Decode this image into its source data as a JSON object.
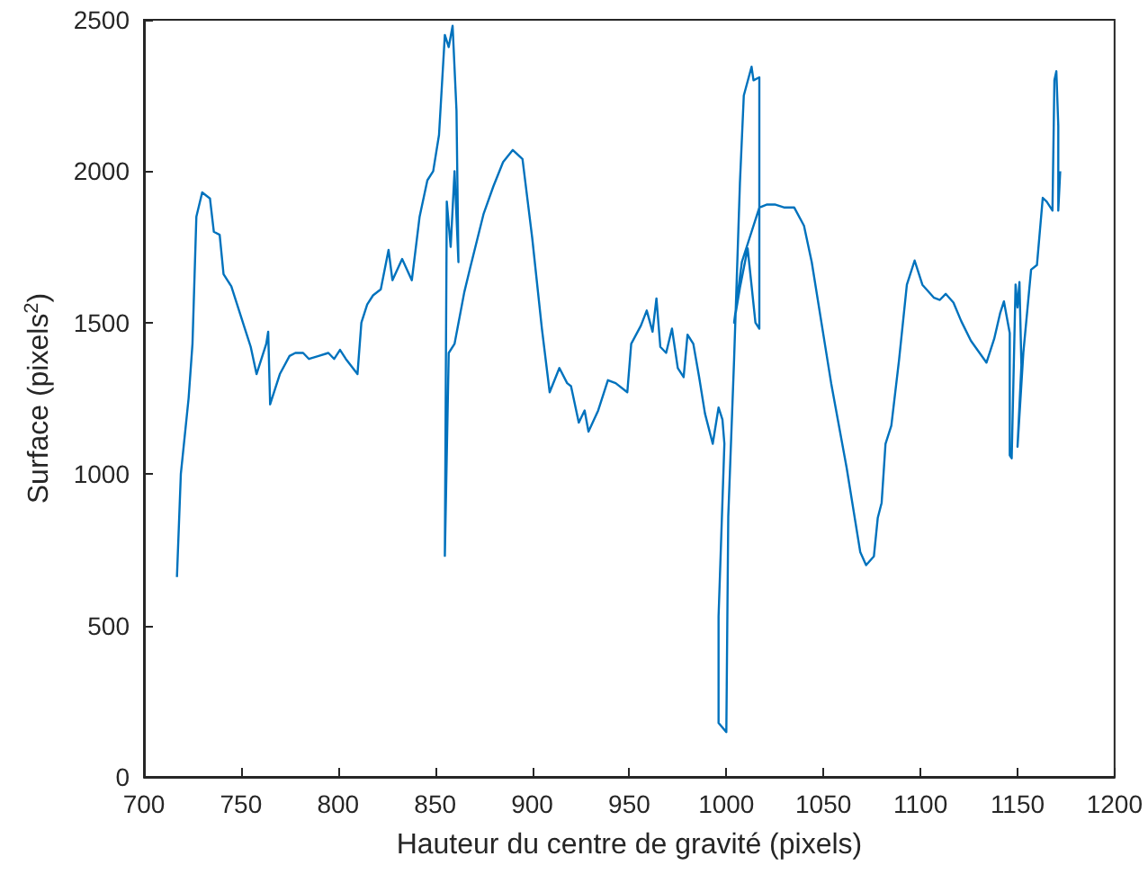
{
  "chart_data": {
    "type": "line",
    "xlabel": "Hauteur du centre de gravité (pixels)",
    "ylabel": "Surface (pixels$^{2}$)",
    "color": "#0072bd",
    "marker": "none",
    "line_style": "solid",
    "grid": false,
    "x": [
      717,
      719,
      723,
      725,
      727,
      730,
      734,
      736,
      739,
      741,
      745,
      748,
      752,
      755,
      758,
      763,
      764,
      765,
      770,
      775,
      778,
      782,
      785,
      790,
      795,
      798,
      801,
      804,
      810,
      812,
      815,
      818,
      822,
      826,
      828,
      833,
      838,
      842,
      846,
      849,
      852,
      855,
      857,
      859,
      861,
      862,
      860,
      858,
      856,
      855,
      857,
      860,
      865,
      868,
      875,
      880,
      885,
      890,
      895,
      900,
      905,
      909,
      914,
      918,
      920,
      924,
      927,
      929,
      934,
      939,
      943,
      949,
      951,
      956,
      959,
      962,
      964,
      966,
      969,
      972,
      975,
      978,
      980,
      983,
      986,
      989,
      993,
      996,
      998,
      999,
      996,
      996,
      1000,
      1001,
      1004,
      1007,
      1009,
      1013,
      1014,
      1017,
      1017,
      1015,
      1011,
      1007,
      1004,
      1008,
      1012,
      1017,
      1021,
      1025,
      1030,
      1035,
      1040,
      1044,
      1054,
      1062,
      1069,
      1072,
      1076,
      1078,
      1080,
      1082,
      1085,
      1089,
      1093,
      1097,
      1101,
      1107,
      1110,
      1113,
      1117,
      1121,
      1126,
      1134,
      1138,
      1141,
      1143,
      1146,
      1146,
      1147,
      1149,
      1150,
      1151,
      1152,
      1150,
      1153,
      1157,
      1160,
      1163,
      1165,
      1168,
      1169,
      1170,
      1171,
      1171,
      1172
    ],
    "values": [
      660,
      1000,
      1250,
      1430,
      1850,
      1930,
      1910,
      1800,
      1790,
      1660,
      1620,
      1560,
      1480,
      1420,
      1330,
      1430,
      1470,
      1230,
      1330,
      1390,
      1400,
      1400,
      1380,
      1390,
      1400,
      1380,
      1410,
      1380,
      1330,
      1500,
      1560,
      1590,
      1610,
      1740,
      1640,
      1710,
      1640,
      1850,
      1970,
      2000,
      2120,
      2450,
      2410,
      2480,
      2200,
      1700,
      2000,
      1750,
      1900,
      730,
      1400,
      1430,
      1600,
      1680,
      1860,
      1950,
      2030,
      2070,
      2040,
      1780,
      1480,
      1270,
      1350,
      1300,
      1290,
      1170,
      1210,
      1140,
      1210,
      1310,
      1300,
      1270,
      1430,
      1490,
      1540,
      1470,
      1580,
      1420,
      1400,
      1480,
      1350,
      1320,
      1460,
      1430,
      1320,
      1200,
      1100,
      1220,
      1180,
      1100,
      530,
      178,
      148,
      860,
      1378,
      1960,
      2250,
      2345,
      2300,
      2310,
      1480,
      1500,
      1745,
      1615,
      1500,
      1700,
      1780,
      1880,
      1890,
      1890,
      1880,
      1880,
      1820,
      1700,
      1300,
      1020,
      742,
      699,
      728,
      855,
      905,
      1100,
      1160,
      1378,
      1625,
      1705,
      1625,
      1582,
      1575,
      1595,
      1566,
      1505,
      1440,
      1368,
      1447,
      1530,
      1570,
      1465,
      1062,
      1052,
      1626,
      1550,
      1634,
      1360,
      1090,
      1400,
      1675,
      1690,
      1912,
      1900,
      1870,
      2300,
      2330,
      2150,
      1870,
      2000
    ],
    "xlim": [
      700,
      1200
    ],
    "xticks": [
      700,
      750,
      800,
      850,
      900,
      950,
      1000,
      1050,
      1100,
      1150,
      1200
    ],
    "ylim": [
      0,
      2500
    ],
    "yticks": [
      0,
      500,
      1000,
      1500,
      2000,
      2500
    ]
  }
}
